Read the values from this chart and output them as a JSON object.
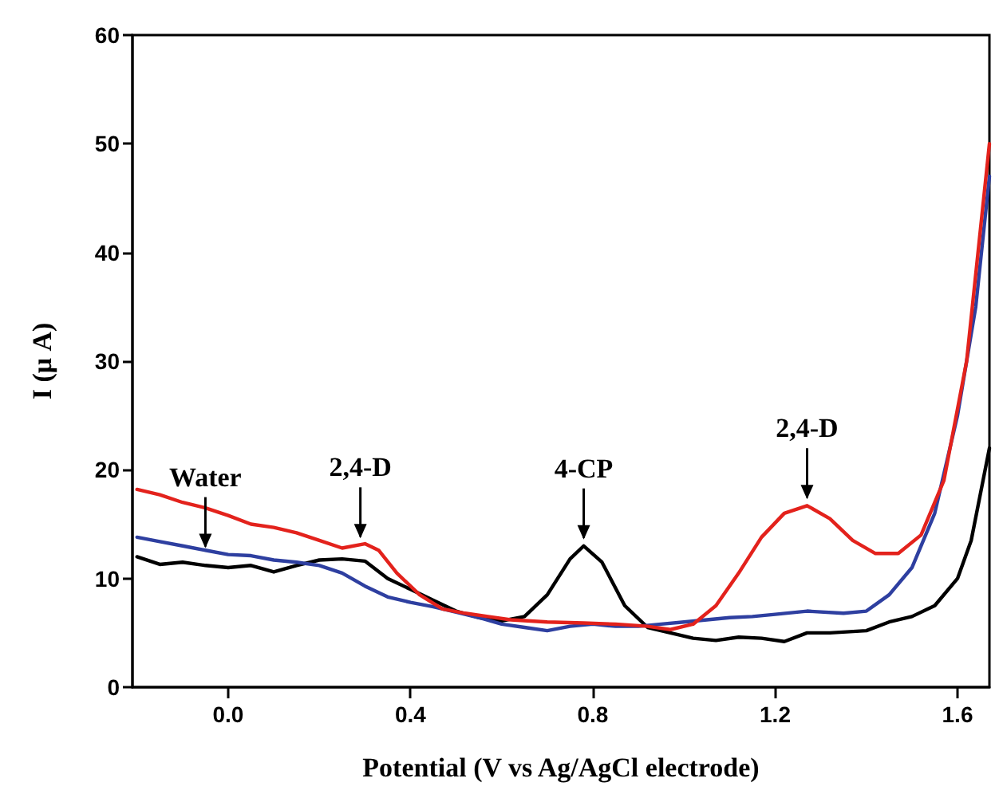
{
  "chart_data": {
    "type": "line",
    "xlabel": "Potential (V vs Ag/AgCl electrode)",
    "ylabel": "I (μ A)",
    "xlim": [
      -0.21,
      1.67
    ],
    "xticks": [
      {
        "value": 0,
        "label": "0.0"
      },
      0.4,
      0.8,
      1.2,
      1.6
    ],
    "ylim": [
      0,
      60
    ],
    "yticks": [
      0,
      10,
      20,
      30,
      40,
      50,
      60
    ],
    "grid": false,
    "marker": "none",
    "line_style": "solid",
    "series": [
      {
        "color": "#000000",
        "x": [
          -0.2,
          -0.15,
          -0.1,
          -0.05,
          0,
          0.05,
          0.1,
          0.15,
          0.2,
          0.25,
          0.3,
          0.35,
          0.4,
          0.45,
          0.5,
          0.55,
          0.6,
          0.65,
          0.7,
          0.75,
          0.78,
          0.82,
          0.87,
          0.92,
          0.97,
          1.02,
          1.07,
          1.12,
          1.17,
          1.22,
          1.27,
          1.32,
          1.4,
          1.45,
          1.5,
          1.55,
          1.6,
          1.63,
          1.67
        ],
        "values": [
          12,
          11.3,
          11.5,
          11.2,
          11,
          11.2,
          10.6,
          11.2,
          11.7,
          11.8,
          11.6,
          10,
          9,
          8,
          7,
          6.4,
          6.1,
          6.5,
          8.5,
          11.8,
          13,
          11.5,
          7.5,
          5.5,
          5,
          4.5,
          4.3,
          4.6,
          4.5,
          4.2,
          5,
          5,
          5.2,
          6,
          6.5,
          7.5,
          10,
          13.5,
          22
        ]
      },
      {
        "color": "#2e3fa0",
        "x": [
          -0.2,
          -0.15,
          -0.1,
          -0.05,
          0,
          0.05,
          0.1,
          0.15,
          0.2,
          0.25,
          0.3,
          0.35,
          0.4,
          0.45,
          0.5,
          0.55,
          0.6,
          0.65,
          0.7,
          0.75,
          0.8,
          0.85,
          0.9,
          0.95,
          1,
          1.05,
          1.1,
          1.15,
          1.2,
          1.27,
          1.35,
          1.4,
          1.45,
          1.5,
          1.55,
          1.6,
          1.64,
          1.67
        ],
        "values": [
          13.8,
          13.4,
          13,
          12.6,
          12.2,
          12.1,
          11.7,
          11.5,
          11.2,
          10.5,
          9.3,
          8.3,
          7.8,
          7.4,
          6.9,
          6.4,
          5.8,
          5.5,
          5.2,
          5.6,
          5.8,
          5.6,
          5.6,
          5.8,
          6,
          6.2,
          6.4,
          6.5,
          6.7,
          7,
          6.8,
          7,
          8.5,
          11,
          16,
          25,
          35,
          47
        ]
      },
      {
        "color": "#e3221c",
        "x": [
          -0.2,
          -0.15,
          -0.1,
          -0.05,
          0,
          0.05,
          0.1,
          0.15,
          0.2,
          0.25,
          0.3,
          0.33,
          0.37,
          0.42,
          0.47,
          0.52,
          0.57,
          0.62,
          0.7,
          0.78,
          0.85,
          0.92,
          0.97,
          1.02,
          1.07,
          1.12,
          1.17,
          1.22,
          1.27,
          1.32,
          1.37,
          1.42,
          1.47,
          1.52,
          1.57,
          1.62,
          1.67
        ],
        "values": [
          18.2,
          17.7,
          17,
          16.5,
          15.8,
          15,
          14.7,
          14.2,
          13.5,
          12.8,
          13.2,
          12.6,
          10.5,
          8.5,
          7.2,
          6.8,
          6.5,
          6.2,
          6,
          5.9,
          5.8,
          5.6,
          5.3,
          5.8,
          7.5,
          10.5,
          13.8,
          16,
          16.7,
          15.5,
          13.5,
          12.3,
          12.3,
          14,
          19,
          30,
          50
        ]
      }
    ],
    "annotations": [
      {
        "text": "Water",
        "x": -0.05,
        "y": 12.5
      },
      {
        "text": "2,4-D",
        "x": 0.29,
        "y": 13.4
      },
      {
        "text": "4-CP",
        "x": 0.78,
        "y": 13.3
      },
      {
        "text": "2,4-D",
        "x": 1.27,
        "y": 17
      }
    ]
  }
}
